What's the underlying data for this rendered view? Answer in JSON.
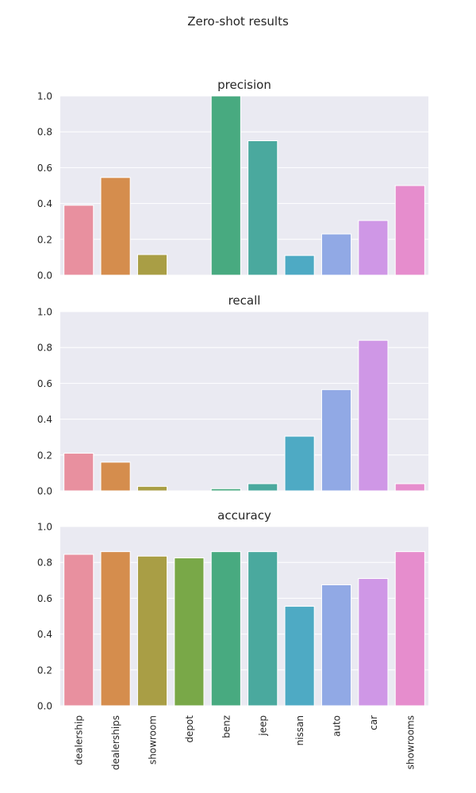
{
  "figure_title": "Zero-shot results",
  "chart_data": {
    "type": "bar",
    "categories": [
      "dealership",
      "dealerships",
      "showroom",
      "depot",
      "benz",
      "jeep",
      "nissan",
      "auto",
      "car",
      "showrooms"
    ],
    "bar_colors": [
      "#e8909f",
      "#d58d4d",
      "#a99e45",
      "#79a848",
      "#48aa80",
      "#4aa99e",
      "#4eaac4",
      "#91a9e5",
      "#cf97e6",
      "#e68dcd"
    ],
    "background_color": "#eaeaf2",
    "grid": true,
    "ylim": [
      0,
      1.0
    ],
    "yticks": [
      "0.0",
      "0.2",
      "0.4",
      "0.6",
      "0.8",
      "1.0"
    ],
    "series": [
      {
        "name": "precision",
        "values": [
          0.39,
          0.545,
          0.115,
          0.0,
          1.0,
          0.75,
          0.11,
          0.23,
          0.305,
          0.5
        ]
      },
      {
        "name": "recall",
        "values": [
          0.21,
          0.16,
          0.025,
          0.0,
          0.012,
          0.04,
          0.305,
          0.565,
          0.84,
          0.04
        ]
      },
      {
        "name": "accuracy",
        "values": [
          0.845,
          0.86,
          0.835,
          0.825,
          0.86,
          0.86,
          0.555,
          0.675,
          0.71,
          0.86
        ]
      }
    ]
  }
}
